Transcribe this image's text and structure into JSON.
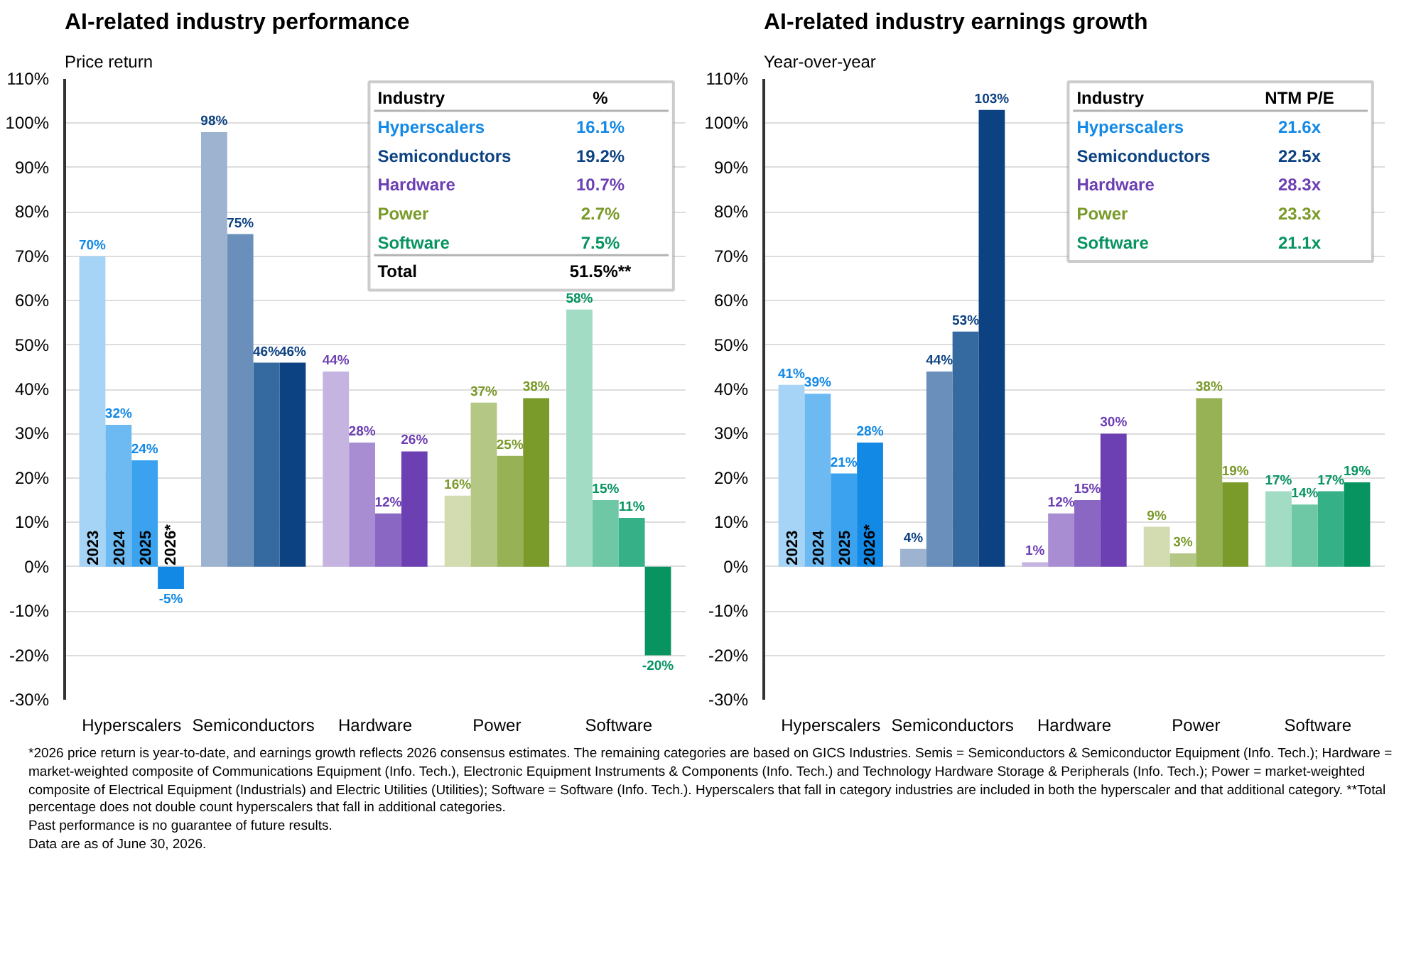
{
  "chart_data": [
    {
      "type": "bar",
      "title": "AI-related industry performance",
      "subtitle": "Price return",
      "categories": [
        "Hyperscalers",
        "Semiconductors",
        "Hardware",
        "Power",
        "Software"
      ],
      "series": [
        {
          "name": "2023",
          "values": [
            70,
            98,
            44,
            16,
            58
          ],
          "colors": [
            "#a6d4f7",
            "#9db3cf",
            "#c6b4e0",
            "#d2dcb0",
            "#a3dcc4"
          ],
          "value_labels": [
            "70%",
            "98%",
            "44%",
            "16%",
            "58%"
          ]
        },
        {
          "name": "2024",
          "values": [
            32,
            75,
            28,
            37,
            15
          ],
          "colors": [
            "#6dbaf2",
            "#6a8fba",
            "#a98dd3",
            "#b4c784",
            "#6ec8a6"
          ],
          "value_labels": [
            "32%",
            "75%",
            "28%",
            "37%",
            "15%"
          ]
        },
        {
          "name": "2025",
          "values": [
            24,
            46,
            12,
            25,
            11
          ],
          "colors": [
            "#3aa2ee",
            "#356aa0",
            "#8a67c2",
            "#97b155",
            "#36b087"
          ],
          "value_labels": [
            "24%",
            "46%",
            "12%",
            "25%",
            "11%"
          ]
        },
        {
          "name": "2026*",
          "values": [
            -5,
            46,
            26,
            38,
            -20
          ],
          "colors": [
            "#1389e6",
            "#0c4282",
            "#6c3fb3",
            "#7a9a2a",
            "#079460"
          ],
          "value_labels": [
            "-5%",
            "46%",
            "26%",
            "38%",
            "-20%"
          ]
        }
      ],
      "ylim": [
        -30,
        110
      ],
      "yticks": [
        {
          "value": -30,
          "label": "-30%"
        },
        {
          "value": -20,
          "label": "-20%"
        },
        {
          "value": -10,
          "label": "-10%"
        },
        {
          "value": 0,
          "label": "0%"
        },
        {
          "value": 10,
          "label": "10%"
        },
        {
          "value": 20,
          "label": "20%"
        },
        {
          "value": 30,
          "label": "30%"
        },
        {
          "value": 40,
          "label": "40%"
        },
        {
          "value": 50,
          "label": "50%"
        },
        {
          "value": 60,
          "label": "60%"
        },
        {
          "value": 70,
          "label": "70%"
        },
        {
          "value": 80,
          "label": "80%"
        },
        {
          "value": 90,
          "label": "90%"
        },
        {
          "value": 100,
          "label": "100%"
        },
        {
          "value": 110,
          "label": "110%"
        }
      ],
      "grid": "y",
      "legend": false,
      "annotations": [
        "Industry",
        "%",
        "Hyperscalers",
        "16.1%",
        "Semiconductors",
        "19.2%",
        "Hardware",
        "10.7%",
        "Power",
        "2.7%",
        "Software",
        "7.5%",
        "Total",
        "51.5%**"
      ]
    },
    {
      "type": "bar",
      "title": "AI-related industry earnings growth",
      "subtitle": "Year-over-year",
      "categories": [
        "Hyperscalers",
        "Semiconductors",
        "Hardware",
        "Power",
        "Software"
      ],
      "series": [
        {
          "name": "2023",
          "values": [
            41,
            4,
            1,
            9,
            17
          ],
          "colors": [
            "#a6d4f7",
            "#9db3cf",
            "#c6b4e0",
            "#d2dcb0",
            "#a3dcc4"
          ],
          "value_labels": [
            "41%",
            "4%",
            "1%",
            "9%",
            "17%"
          ]
        },
        {
          "name": "2024",
          "values": [
            39,
            44,
            12,
            3,
            14
          ],
          "colors": [
            "#6dbaf2",
            "#6a8fba",
            "#a98dd3",
            "#b4c784",
            "#6ec8a6"
          ],
          "value_labels": [
            "39%",
            "44%",
            "12%",
            "3%",
            "14%"
          ]
        },
        {
          "name": "2025",
          "values": [
            21,
            53,
            15,
            38,
            17
          ],
          "colors": [
            "#3aa2ee",
            "#356aa0",
            "#8a67c2",
            "#97b155",
            "#36b087"
          ],
          "value_labels": [
            "21%",
            "53%",
            "15%",
            "38%",
            "17%"
          ]
        },
        {
          "name": "2026*",
          "values": [
            28,
            103,
            30,
            19,
            19
          ],
          "colors": [
            "#1389e6",
            "#0c4282",
            "#6c3fb3",
            "#7a9a2a",
            "#079460"
          ],
          "value_labels": [
            "28%",
            "103%",
            "30%",
            "19%",
            "19%"
          ]
        }
      ],
      "ylim": [
        -30,
        110
      ],
      "yticks": [
        {
          "value": -30,
          "label": "-30%"
        },
        {
          "value": -20,
          "label": "-20%"
        },
        {
          "value": -10,
          "label": "-10%"
        },
        {
          "value": 0,
          "label": "0%"
        },
        {
          "value": 10,
          "label": "10%"
        },
        {
          "value": 20,
          "label": "20%"
        },
        {
          "value": 30,
          "label": "30%"
        },
        {
          "value": 40,
          "label": "40%"
        },
        {
          "value": 50,
          "label": "50%"
        },
        {
          "value": 60,
          "label": "60%"
        },
        {
          "value": 70,
          "label": "70%"
        },
        {
          "value": 80,
          "label": "80%"
        },
        {
          "value": 90,
          "label": "90%"
        },
        {
          "value": 100,
          "label": "100%"
        },
        {
          "value": 110,
          "label": "110%"
        }
      ],
      "grid": "y",
      "legend": false,
      "annotations": [
        "Industry",
        "NTM P/E",
        "Hyperscalers",
        "21.6x",
        "Semiconductors",
        "22.5x",
        "Hardware",
        "28.3x",
        "Power",
        "23.3x",
        "Software",
        "21.1x"
      ]
    },
    {
      "type": "other",
      "annotations": [
        "*2026 price return is year-to-date, and earnings growth reflects 2026 consensus estimates. The remaining categories are based on GICS Industries. Semis = Semiconductors & Semiconductor Equipment (Info. Tech.); Hardware = market-weighted composite of Communications Equipment (Info. Tech.), Electronic Equipment Instruments & Components (Info. Tech.) and Technology Hardware Storage & Peripherals (Info. Tech.); Power = market-weighted composite of Electrical Equipment (Industrials) and Electric Utilities (Utilities); Software = Software (Info. Tech.). Hyperscalers that fall in category industries are included in both the hyperscaler and that additional category. **Total percentage does not double count hyperscalers that fall in additional categories.",
        "Past performance is no guarantee of future results.",
        "Data are as of June 30, 2026."
      ]
    }
  ]
}
